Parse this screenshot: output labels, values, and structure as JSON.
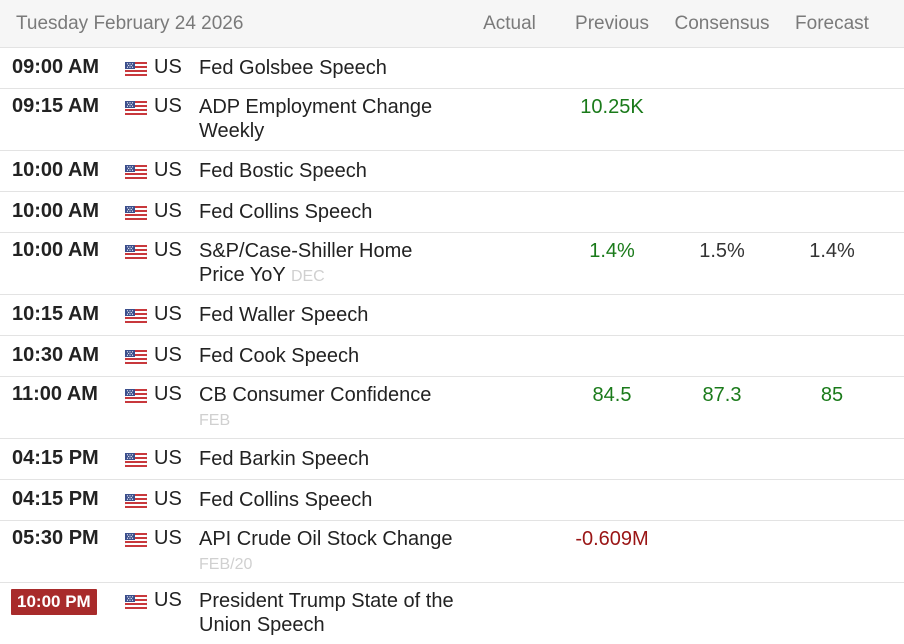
{
  "header": {
    "date": "Tuesday February 24 2026",
    "col_actual": "Actual",
    "col_previous": "Previous",
    "col_consensus": "Consensus",
    "col_forecast": "Forecast"
  },
  "colors": {
    "positive": "#1a7a1a",
    "negative": "#9a1515",
    "highlight_time_bg": "#a82b2b"
  },
  "events": [
    {
      "time": "09:00 AM",
      "country": "US",
      "event": "Fed Golsbee Speech",
      "period": "",
      "actual": "",
      "previous": "",
      "previous_color": "",
      "consensus": "",
      "consensus_color": "",
      "forecast": "",
      "forecast_color": ""
    },
    {
      "time": "09:15 AM",
      "country": "US",
      "event": "ADP Employment Change Weekly",
      "period": "",
      "actual": "",
      "previous": "10.25K",
      "previous_color": "green",
      "consensus": "",
      "consensus_color": "",
      "forecast": "",
      "forecast_color": ""
    },
    {
      "time": "10:00 AM",
      "country": "US",
      "event": "Fed Bostic Speech",
      "period": "",
      "actual": "",
      "previous": "",
      "previous_color": "",
      "consensus": "",
      "consensus_color": "",
      "forecast": "",
      "forecast_color": ""
    },
    {
      "time": "10:00 AM",
      "country": "US",
      "event": "Fed Collins Speech",
      "period": "",
      "actual": "",
      "previous": "",
      "previous_color": "",
      "consensus": "",
      "consensus_color": "",
      "forecast": "",
      "forecast_color": ""
    },
    {
      "time": "10:00 AM",
      "country": "US",
      "event": "S&P/Case-Shiller Home Price YoY",
      "period": "DEC",
      "actual": "",
      "previous": "1.4%",
      "previous_color": "green",
      "consensus": "1.5%",
      "consensus_color": "dark",
      "forecast": "1.4%",
      "forecast_color": "dark"
    },
    {
      "time": "10:15 AM",
      "country": "US",
      "event": "Fed Waller Speech",
      "period": "",
      "actual": "",
      "previous": "",
      "previous_color": "",
      "consensus": "",
      "consensus_color": "",
      "forecast": "",
      "forecast_color": ""
    },
    {
      "time": "10:30 AM",
      "country": "US",
      "event": "Fed Cook Speech",
      "period": "",
      "actual": "",
      "previous": "",
      "previous_color": "",
      "consensus": "",
      "consensus_color": "",
      "forecast": "",
      "forecast_color": ""
    },
    {
      "time": "11:00 AM",
      "country": "US",
      "event": "CB Consumer Confidence",
      "period": "FEB",
      "actual": "",
      "previous": "84.5",
      "previous_color": "green",
      "consensus": "87.3",
      "consensus_color": "green",
      "forecast": "85",
      "forecast_color": "green"
    },
    {
      "time": "04:15 PM",
      "country": "US",
      "event": "Fed Barkin Speech",
      "period": "",
      "actual": "",
      "previous": "",
      "previous_color": "",
      "consensus": "",
      "consensus_color": "",
      "forecast": "",
      "forecast_color": ""
    },
    {
      "time": "04:15 PM",
      "country": "US",
      "event": "Fed Collins Speech",
      "period": "",
      "actual": "",
      "previous": "",
      "previous_color": "",
      "consensus": "",
      "consensus_color": "",
      "forecast": "",
      "forecast_color": ""
    },
    {
      "time": "05:30 PM",
      "country": "US",
      "event": "API Crude Oil Stock Change",
      "period": "FEB/20",
      "actual": "",
      "previous": "-0.609M",
      "previous_color": "red",
      "consensus": "",
      "consensus_color": "",
      "forecast": "",
      "forecast_color": ""
    },
    {
      "time": "10:00 PM",
      "time_highlight": true,
      "country": "US",
      "event": "President Trump State of the Union Speech",
      "period": "",
      "actual": "",
      "previous": "",
      "previous_color": "",
      "consensus": "",
      "consensus_color": "",
      "forecast": "",
      "forecast_color": ""
    }
  ]
}
